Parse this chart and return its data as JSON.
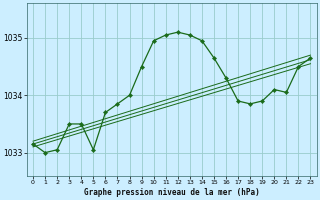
{
  "title": "Graphe pression niveau de la mer (hPa)",
  "bg_color": "#cceeff",
  "grid_color": "#99cccc",
  "line_color": "#1a6b1a",
  "xlim": [
    -0.5,
    23.5
  ],
  "ylim": [
    1032.6,
    1035.6
  ],
  "yticks": [
    1033,
    1034,
    1035
  ],
  "xticks": [
    0,
    1,
    2,
    3,
    4,
    5,
    6,
    7,
    8,
    9,
    10,
    11,
    12,
    13,
    14,
    15,
    16,
    17,
    18,
    19,
    20,
    21,
    22,
    23
  ],
  "main_x": [
    0,
    1,
    2,
    3,
    4,
    5,
    6,
    7,
    8,
    9,
    10,
    11,
    12,
    13,
    14,
    15,
    16,
    17,
    18,
    19,
    20,
    21,
    22,
    23
  ],
  "main_y": [
    1033.15,
    1033.0,
    1033.05,
    1033.5,
    1033.5,
    1033.05,
    1033.7,
    1033.85,
    1034.0,
    1034.5,
    1034.95,
    1035.05,
    1035.1,
    1035.05,
    1034.95,
    1034.65,
    1034.3,
    1033.9,
    1033.85,
    1033.9,
    1034.1,
    1034.05,
    1034.5,
    1034.65
  ],
  "trend_lines": [
    {
      "x0": 0,
      "y0": 1033.1,
      "x1": 23,
      "y1": 1034.55
    },
    {
      "x0": 0,
      "y0": 1033.15,
      "x1": 23,
      "y1": 1034.62
    },
    {
      "x0": 0,
      "y0": 1033.2,
      "x1": 23,
      "y1": 1034.7
    }
  ]
}
